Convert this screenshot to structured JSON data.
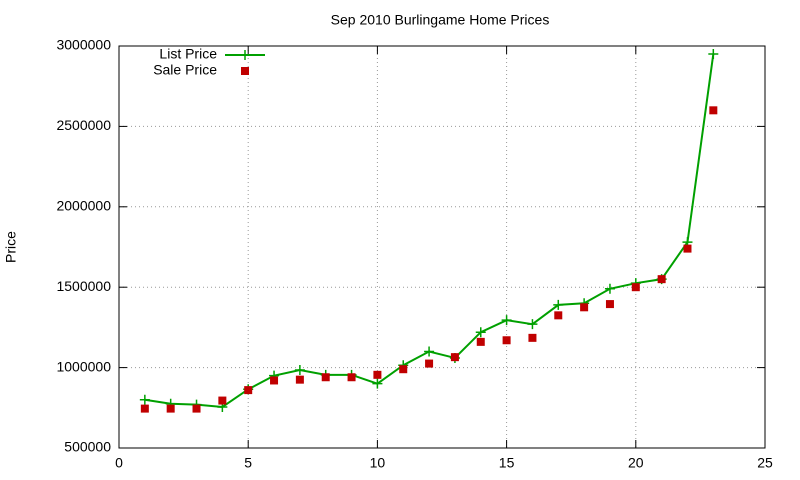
{
  "chart_data": {
    "type": "line",
    "title": "Sep 2010 Burlingame Home Prices",
    "y_label": "Price",
    "xlim": [
      0,
      25
    ],
    "xticks": [
      0,
      5,
      10,
      15,
      20,
      25
    ],
    "ylim": [
      500000,
      3000000
    ],
    "yticks": [
      500000,
      1000000,
      1500000,
      2000000,
      2500000,
      3000000
    ],
    "grid": true,
    "legend": "top-left",
    "x": [
      1,
      2,
      3,
      4,
      5,
      6,
      7,
      8,
      9,
      10,
      11,
      12,
      13,
      14,
      15,
      16,
      17,
      18,
      19,
      20,
      21,
      22,
      23
    ],
    "series": [
      {
        "name": "List Price",
        "color": "#00a000",
        "line": true,
        "marker": "plus",
        "values": [
          800000,
          775000,
          770000,
          755000,
          865000,
          950000,
          985000,
          955000,
          955000,
          900000,
          1015000,
          1100000,
          1060000,
          1220000,
          1295000,
          1270000,
          1390000,
          1400000,
          1490000,
          1525000,
          1550000,
          1780000,
          2950000
        ]
      },
      {
        "name": "Sale Price",
        "color": "#c00000",
        "line": false,
        "marker": "square",
        "values": [
          745000,
          745000,
          745000,
          795000,
          860000,
          920000,
          925000,
          940000,
          940000,
          955000,
          990000,
          1025000,
          1065000,
          1160000,
          1170000,
          1185000,
          1325000,
          1375000,
          1395000,
          1500000,
          1550000,
          1740000,
          2600000
        ]
      }
    ]
  }
}
